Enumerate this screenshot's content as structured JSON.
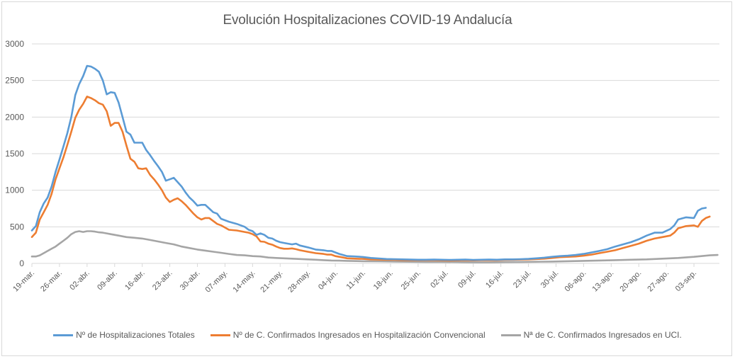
{
  "chart_data": {
    "type": "line",
    "title": "Evolución Hospitalizaciones COVID-19 Andalucía",
    "xlabel": "",
    "ylabel": "",
    "ylim": [
      0,
      3000
    ],
    "yticks": [
      "0",
      "500",
      "1000",
      "1500",
      "2000",
      "2500",
      "3000"
    ],
    "ytick_values": [
      0,
      500,
      1000,
      1500,
      2000,
      2500,
      3000
    ],
    "grid": true,
    "legend_position": "bottom",
    "x_start": "19-mar.",
    "x_step_days": 1,
    "xticks": [
      "19-mar.",
      "26-mar.",
      "02-abr.",
      "09-abr.",
      "16-abr.",
      "23-abr.",
      "30-abr.",
      "07-may.",
      "14-may.",
      "21-may.",
      "28-may.",
      "04-jun.",
      "11-jun.",
      "18-jun.",
      "25-jun.",
      "02-jul.",
      "09-jul.",
      "16-jul.",
      "23-jul.",
      "30-jul.",
      "06-ago.",
      "13-ago.",
      "20-ago.",
      "27-ago.",
      "03-sep."
    ],
    "xtick_day_index": [
      0,
      7,
      14,
      21,
      28,
      35,
      42,
      49,
      56,
      63,
      70,
      77,
      84,
      91,
      98,
      105,
      112,
      119,
      126,
      133,
      140,
      147,
      154,
      161,
      168
    ],
    "series": [
      {
        "name": "Nº de Hospitalizaciones Totales",
        "color": "#5b9bd5",
        "day_index": [
          0,
          1,
          2,
          3,
          4,
          5,
          6,
          7,
          8,
          9,
          10,
          11,
          12,
          13,
          14,
          15,
          16,
          17,
          18,
          19,
          20,
          21,
          22,
          23,
          24,
          25,
          26,
          27,
          28,
          29,
          30,
          31,
          32,
          33,
          34,
          35,
          36,
          37,
          38,
          39,
          40,
          41,
          42,
          43,
          44,
          45,
          46,
          47,
          48,
          50,
          52,
          54,
          55,
          56,
          57,
          58,
          59,
          60,
          61,
          62,
          63,
          64,
          65,
          66,
          67,
          68,
          70,
          72,
          74,
          75,
          76,
          77,
          78,
          79,
          80,
          82,
          84,
          86,
          88,
          90,
          92,
          94,
          96,
          98,
          100,
          102,
          104,
          106,
          108,
          110,
          112,
          114,
          116,
          118,
          120,
          122,
          124,
          126,
          128,
          130,
          132,
          134,
          136,
          138,
          140,
          142,
          144,
          146,
          148,
          150,
          152,
          154,
          156,
          158,
          160,
          162,
          163,
          164,
          166,
          168,
          169,
          170,
          171,
          172,
          173,
          174
        ],
        "values": [
          450,
          510,
          700,
          820,
          900,
          1050,
          1250,
          1420,
          1600,
          1780,
          2000,
          2300,
          2450,
          2560,
          2700,
          2690,
          2660,
          2620,
          2500,
          2310,
          2340,
          2330,
          2200,
          2000,
          1800,
          1760,
          1650,
          1650,
          1650,
          1550,
          1480,
          1400,
          1330,
          1250,
          1130,
          1150,
          1170,
          1110,
          1050,
          970,
          900,
          850,
          790,
          800,
          800,
          750,
          700,
          680,
          610,
          570,
          540,
          500,
          460,
          440,
          390,
          410,
          390,
          350,
          340,
          310,
          290,
          280,
          270,
          260,
          270,
          245,
          220,
          190,
          180,
          170,
          170,
          150,
          130,
          115,
          100,
          95,
          88,
          75,
          68,
          60,
          58,
          55,
          52,
          50,
          50,
          52,
          50,
          48,
          50,
          52,
          48,
          50,
          52,
          50,
          55,
          55,
          58,
          62,
          70,
          78,
          90,
          100,
          105,
          115,
          130,
          150,
          170,
          195,
          230,
          260,
          290,
          330,
          380,
          420,
          420,
          470,
          520,
          600,
          630,
          620,
          720,
          750,
          760
        ]
      },
      {
        "name": "Nº de C. Confirmados Ingresados en Hospitalización Convencional",
        "color": "#ed7d31",
        "day_index": [
          0,
          1,
          2,
          3,
          4,
          5,
          6,
          7,
          8,
          9,
          10,
          11,
          12,
          13,
          14,
          15,
          16,
          17,
          18,
          19,
          20,
          21,
          22,
          23,
          24,
          25,
          26,
          27,
          28,
          29,
          30,
          31,
          32,
          33,
          34,
          35,
          36,
          37,
          38,
          39,
          40,
          41,
          42,
          43,
          44,
          45,
          46,
          47,
          48,
          50,
          52,
          54,
          55,
          56,
          57,
          58,
          59,
          60,
          61,
          62,
          63,
          64,
          65,
          66,
          67,
          68,
          70,
          72,
          74,
          75,
          76,
          77,
          78,
          79,
          80,
          82,
          84,
          86,
          88,
          90,
          92,
          94,
          96,
          98,
          100,
          102,
          104,
          106,
          108,
          110,
          112,
          114,
          116,
          118,
          120,
          122,
          124,
          126,
          128,
          130,
          132,
          134,
          136,
          138,
          140,
          142,
          144,
          146,
          148,
          150,
          152,
          154,
          156,
          158,
          160,
          162,
          163,
          164,
          166,
          168,
          169,
          170,
          171,
          172,
          173,
          174
        ],
        "values": [
          360,
          420,
          600,
          700,
          800,
          950,
          1150,
          1300,
          1450,
          1620,
          1800,
          1990,
          2100,
          2180,
          2280,
          2260,
          2230,
          2190,
          2170,
          2080,
          1880,
          1920,
          1920,
          1800,
          1610,
          1430,
          1390,
          1300,
          1290,
          1300,
          1210,
          1150,
          1080,
          1000,
          900,
          840,
          870,
          890,
          850,
          800,
          740,
          680,
          630,
          600,
          620,
          620,
          580,
          540,
          520,
          460,
          450,
          430,
          420,
          400,
          370,
          300,
          295,
          270,
          255,
          230,
          210,
          200,
          200,
          205,
          195,
          180,
          160,
          140,
          130,
          120,
          120,
          100,
          90,
          80,
          70,
          65,
          62,
          55,
          52,
          50,
          48,
          45,
          45,
          45,
          45,
          45,
          42,
          40,
          42,
          45,
          42,
          45,
          45,
          45,
          48,
          50,
          52,
          55,
          60,
          65,
          75,
          85,
          90,
          95,
          105,
          120,
          140,
          160,
          180,
          210,
          240,
          270,
          310,
          340,
          360,
          380,
          420,
          480,
          510,
          520,
          500,
          580,
          620,
          640
        ]
      },
      {
        "name": "Nª de C. Confirmados Ingresados en UCI.",
        "color": "#a5a5a5",
        "day_index": [
          0,
          1,
          2,
          3,
          4,
          5,
          6,
          7,
          8,
          9,
          10,
          11,
          12,
          13,
          14,
          15,
          16,
          17,
          18,
          19,
          20,
          22,
          24,
          26,
          28,
          30,
          32,
          34,
          36,
          38,
          40,
          42,
          44,
          46,
          48,
          50,
          52,
          54,
          56,
          58,
          60,
          62,
          64,
          66,
          68,
          70,
          72,
          74,
          76,
          78,
          80,
          84,
          88,
          92,
          96,
          100,
          104,
          108,
          112,
          116,
          120,
          124,
          128,
          132,
          136,
          140,
          144,
          148,
          152,
          156,
          160,
          164,
          168,
          172,
          174
        ],
        "values": [
          95,
          95,
          110,
          140,
          170,
          200,
          230,
          270,
          310,
          350,
          400,
          430,
          440,
          430,
          440,
          440,
          435,
          425,
          420,
          410,
          400,
          380,
          360,
          350,
          340,
          320,
          300,
          280,
          260,
          230,
          210,
          190,
          175,
          160,
          145,
          130,
          115,
          110,
          100,
          95,
          80,
          75,
          70,
          65,
          60,
          55,
          50,
          45,
          40,
          38,
          35,
          30,
          28,
          25,
          22,
          20,
          20,
          18,
          15,
          15,
          18,
          20,
          22,
          25,
          30,
          35,
          40,
          45,
          50,
          55,
          65,
          75,
          90,
          110,
          115
        ]
      }
    ]
  }
}
